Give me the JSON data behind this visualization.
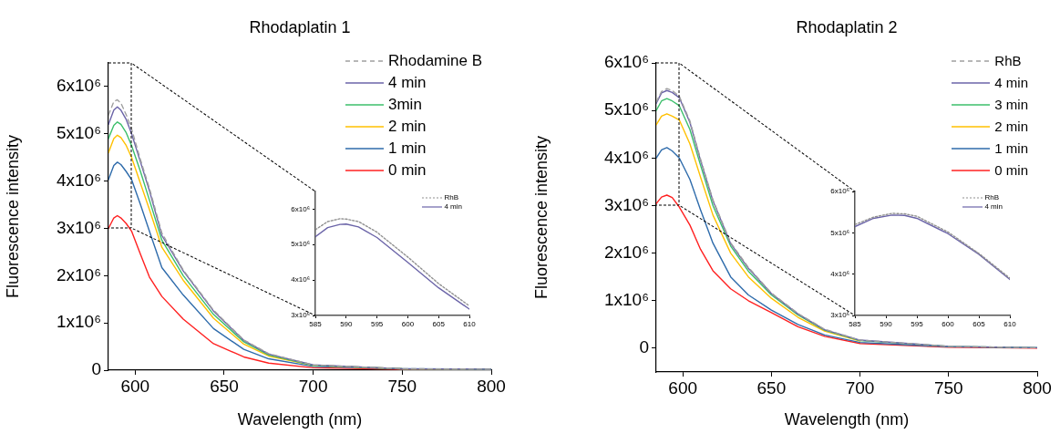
{
  "chart_data": [
    {
      "type": "line",
      "title": "Rhodaplatin 1",
      "xlabel": "Wavelength (nm)",
      "ylabel": "Fluorescence intensity",
      "x": [
        585,
        588,
        590,
        592,
        595,
        598,
        603,
        608,
        615,
        627,
        644,
        661,
        675,
        700,
        750,
        800
      ],
      "xlim": [
        585,
        800
      ],
      "xticks": [
        600,
        650,
        700,
        750,
        800
      ],
      "ylim": [
        0,
        6500000
      ],
      "yticks": [
        {
          "value": 0,
          "label": "0"
        },
        {
          "value": 1000000,
          "label": "1x10⁶"
        },
        {
          "value": 2000000,
          "label": "2x10⁶"
        },
        {
          "value": 3000000,
          "label": "3x10⁶"
        },
        {
          "value": 4000000,
          "label": "4x10⁶"
        },
        {
          "value": 5000000,
          "label": "5x10⁶"
        },
        {
          "value": 6000000,
          "label": "6x10⁶"
        }
      ],
      "grid": false,
      "legend": "top right",
      "marker": "none",
      "series": [
        {
          "name": "Rhodamine B",
          "color": "#a0a0a0",
          "line_style": "dashed",
          "values": [
            5400000,
            5680000,
            5720000,
            5650000,
            5400000,
            5100000,
            4450000,
            3850000,
            2900000,
            2120000,
            1270000,
            640000,
            350000,
            110000,
            30000,
            20000
          ]
        },
        {
          "name": "4 min",
          "color": "#6b64a8",
          "line_style": "solid",
          "values": [
            5200000,
            5500000,
            5570000,
            5500000,
            5300000,
            5000000,
            4400000,
            3800000,
            2850000,
            2100000,
            1250000,
            630000,
            340000,
            110000,
            30000,
            20000
          ]
        },
        {
          "name": "3min",
          "color": "#3cbf6b",
          "line_style": "solid",
          "values": [
            4900000,
            5180000,
            5250000,
            5200000,
            5020000,
            4750000,
            4200000,
            3600000,
            2750000,
            2000000,
            1180000,
            600000,
            320000,
            100000,
            30000,
            20000
          ]
        },
        {
          "name": "2 min",
          "color": "#ffc000",
          "line_style": "solid",
          "values": [
            4600000,
            4900000,
            4970000,
            4920000,
            4750000,
            4500000,
            3950000,
            3400000,
            2600000,
            1900000,
            1100000,
            550000,
            300000,
            100000,
            30000,
            20000
          ]
        },
        {
          "name": "1 min",
          "color": "#2e6bab",
          "line_style": "solid",
          "values": [
            4030000,
            4330000,
            4400000,
            4350000,
            4200000,
            4030000,
            3500000,
            2940000,
            2170000,
            1590000,
            880000,
            440000,
            240000,
            80000,
            30000,
            20000
          ]
        },
        {
          "name": "0 min",
          "color": "#ff2020",
          "line_style": "solid",
          "values": [
            3000000,
            3220000,
            3270000,
            3220000,
            3100000,
            2940000,
            2450000,
            1970000,
            1560000,
            1080000,
            560000,
            280000,
            150000,
            50000,
            20000,
            10000
          ]
        }
      ]
    },
    {
      "type": "line",
      "x": [
        585,
        587,
        589,
        590,
        592,
        595,
        600,
        605,
        610
      ],
      "xlim": [
        585,
        610
      ],
      "xticks": [
        585,
        590,
        595,
        600,
        605,
        610
      ],
      "ylim": [
        3000000,
        6500000
      ],
      "yticks": [
        {
          "value": 3000000,
          "label": "3x10⁶"
        },
        {
          "value": 4000000,
          "label": "4x10⁶"
        },
        {
          "value": 5000000,
          "label": "5x10⁶"
        },
        {
          "value": 6000000,
          "label": "6x10⁶"
        }
      ],
      "grid": false,
      "legend": "top right",
      "marker": "none",
      "series": [
        {
          "name": "RhB",
          "color": "#909090",
          "line_style": "dotted",
          "values": [
            5420000,
            5650000,
            5730000,
            5720000,
            5650000,
            5350000,
            4650000,
            3900000,
            3270000
          ]
        },
        {
          "name": "4 min",
          "color": "#6b64a8",
          "line_style": "solid",
          "values": [
            5220000,
            5480000,
            5570000,
            5580000,
            5500000,
            5200000,
            4500000,
            3780000,
            3180000
          ]
        }
      ]
    },
    {
      "type": "line",
      "title": "Rhodaplatin 2",
      "xlabel": "Wavelength (nm)",
      "ylabel": "Fluorescence intensity",
      "x": [
        585,
        588,
        591,
        594,
        598,
        604,
        610,
        617,
        627,
        637,
        650,
        665,
        680,
        700,
        750,
        800
      ],
      "xlim": [
        585,
        800
      ],
      "xticks": [
        600,
        650,
        700,
        750,
        800
      ],
      "ylim": [
        -500000,
        6000000
      ],
      "yticks": [
        {
          "value": 0,
          "label": "0"
        },
        {
          "value": 1000000,
          "label": "1x10⁶"
        },
        {
          "value": 2000000,
          "label": "2x10⁶"
        },
        {
          "value": 3000000,
          "label": "3x10⁶"
        },
        {
          "value": 4000000,
          "label": "4x10⁶"
        },
        {
          "value": 5000000,
          "label": "5x10⁶"
        },
        {
          "value": 6000000,
          "label": "6x10⁶"
        }
      ],
      "grid": false,
      "legend": "top right",
      "marker": "none",
      "series": [
        {
          "name": "RhB",
          "color": "#a0a0a0",
          "line_style": "dashed",
          "values": [
            5180000,
            5400000,
            5460000,
            5420000,
            5300000,
            4780000,
            3980000,
            3120000,
            2220000,
            1700000,
            1160000,
            730000,
            400000,
            170000,
            40000,
            10000
          ]
        },
        {
          "name": "4 min",
          "color": "#6b64a8",
          "line_style": "solid",
          "values": [
            5150000,
            5370000,
            5420000,
            5380000,
            5270000,
            4750000,
            3950000,
            3100000,
            2200000,
            1680000,
            1150000,
            720000,
            390000,
            170000,
            40000,
            10000
          ]
        },
        {
          "name": "3 min",
          "color": "#3cbf6b",
          "line_style": "solid",
          "values": [
            5000000,
            5200000,
            5250000,
            5200000,
            5100000,
            4600000,
            3850000,
            3000000,
            2150000,
            1620000,
            1120000,
            700000,
            380000,
            160000,
            40000,
            10000
          ]
        },
        {
          "name": "2 min",
          "color": "#ffc000",
          "line_style": "solid",
          "values": [
            4700000,
            4880000,
            4930000,
            4880000,
            4800000,
            4300000,
            3600000,
            2800000,
            2000000,
            1500000,
            1050000,
            650000,
            360000,
            150000,
            null,
            null
          ]
        },
        {
          "name": "1 min",
          "color": "#2e6bab",
          "line_style": "solid",
          "values": [
            4000000,
            4170000,
            4220000,
            4150000,
            4000000,
            3550000,
            2910000,
            2210000,
            1500000,
            1120000,
            800000,
            500000,
            280000,
            120000,
            30000,
            10000
          ]
        },
        {
          "name": "0 min",
          "color": "#ff2020",
          "line_style": "solid",
          "values": [
            3040000,
            3180000,
            3220000,
            3170000,
            2970000,
            2590000,
            2080000,
            1630000,
            1250000,
            1000000,
            750000,
            450000,
            250000,
            100000,
            20000,
            0
          ]
        }
      ]
    },
    {
      "type": "line",
      "x": [
        585,
        588,
        591,
        593,
        595,
        600,
        605,
        610
      ],
      "xlim": [
        585,
        610
      ],
      "xticks": [
        585,
        590,
        595,
        600,
        605,
        610
      ],
      "ylim": [
        3000000,
        6000000
      ],
      "yticks": [
        {
          "value": 3000000,
          "label": "3x10⁶"
        },
        {
          "value": 4000000,
          "label": "4x10⁶"
        },
        {
          "value": 5000000,
          "label": "5x10⁶"
        },
        {
          "value": 6000000,
          "label": "6x10⁶"
        }
      ],
      "grid": false,
      "legend": "top right",
      "marker": "none",
      "series": [
        {
          "name": "RhB",
          "color": "#909090",
          "line_style": "dotted",
          "values": [
            5200000,
            5380000,
            5470000,
            5460000,
            5400000,
            5020000,
            4500000,
            3900000
          ]
        },
        {
          "name": "4 min",
          "color": "#6b64a8",
          "line_style": "solid",
          "values": [
            5150000,
            5350000,
            5430000,
            5420000,
            5350000,
            4980000,
            4480000,
            3870000
          ]
        }
      ]
    }
  ]
}
